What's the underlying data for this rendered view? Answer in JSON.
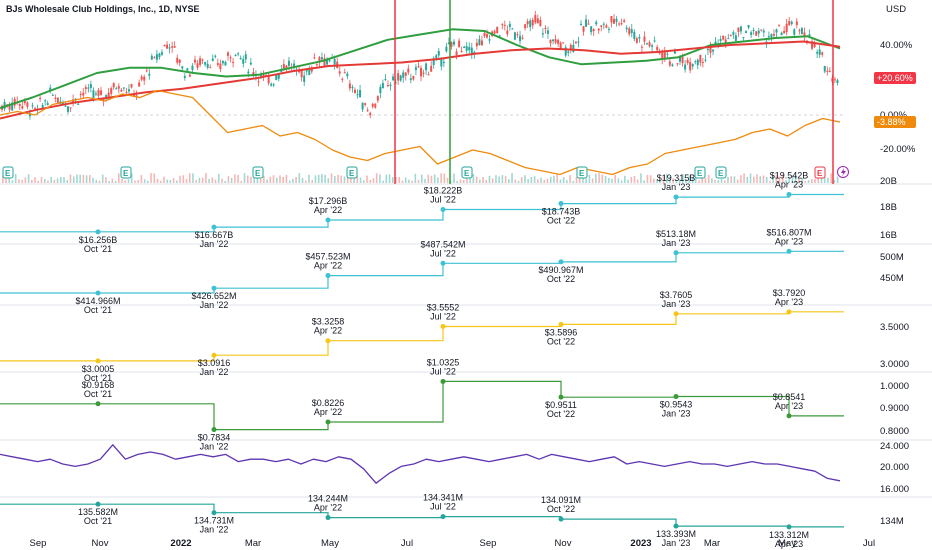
{
  "chart_title": "BJs Wholesale Club Holdings, Inc., 1D, NYSE",
  "currency": "USD",
  "colors": {
    "ma_fast": "#2e9e3e",
    "ma_slow": "#e53935",
    "comparison": "#ef8a0c",
    "up_candle": "#26a69a",
    "down_candle": "#ef5350",
    "revenue": "#3ec1d3",
    "gross_profit": "#3ec1d3",
    "eps": "#f5c518",
    "dividend_line": "#3b9b3b",
    "ratio": "#5e35b1",
    "shares": "#26a69a"
  },
  "chart_data": [
    {
      "type": "line",
      "panel": "price",
      "x_ticks": [
        "Sep",
        "Nov",
        "2022",
        "Mar",
        "May",
        "Jul",
        "Sep",
        "Nov",
        "2023",
        "Mar",
        "May",
        "Jul"
      ],
      "y_ticks": [
        "40.00%",
        "0.00%",
        "-20.00%"
      ],
      "badges": [
        {
          "text": "+20.60%",
          "color": "#f23645"
        },
        {
          "text": "-3.88%",
          "color": "#ef8a0c"
        }
      ],
      "event_markers": [
        "E",
        "E",
        "E",
        "E",
        "E",
        "E",
        "E",
        "E",
        "E"
      ],
      "series": [
        {
          "role": "price",
          "values": [
            5,
            8,
            2,
            12,
            6,
            14,
            10,
            18,
            12,
            30,
            42,
            24,
            32,
            28,
            36,
            26,
            18,
            30,
            22,
            34,
            28,
            16,
            2,
            18,
            22,
            24,
            30,
            40,
            36,
            44,
            50,
            46,
            54,
            42,
            38,
            52,
            50,
            56,
            44,
            40,
            32,
            30,
            34,
            42,
            46,
            48,
            44,
            50,
            48,
            32,
            20
          ]
        },
        {
          "role": "ma_fast",
          "values": [
            4,
            10,
            17,
            24,
            27,
            27,
            24,
            22,
            23,
            27,
            31,
            37,
            43,
            46,
            49,
            48,
            40,
            33,
            29,
            30,
            31,
            33,
            40,
            42,
            44,
            45,
            38
          ]
        },
        {
          "role": "ma_slow",
          "values": [
            -2,
            3,
            7,
            10,
            13,
            15,
            18,
            21,
            25,
            28,
            29,
            30,
            32,
            35,
            37,
            38,
            37,
            35,
            36,
            38,
            40,
            41,
            42,
            39
          ]
        },
        {
          "role": "comparison",
          "values": [
            0,
            2,
            0,
            6,
            8,
            10,
            8,
            12,
            10,
            14,
            12,
            10,
            0,
            -10,
            -8,
            -6,
            -12,
            -10,
            -14,
            -20,
            -24,
            -26,
            -22,
            -20,
            -18,
            -28,
            -24,
            -20,
            -22,
            -26,
            -30,
            -32,
            -34,
            -30,
            -32,
            -34,
            -30,
            -28,
            -22,
            -20,
            -18,
            -16,
            -14,
            -10,
            -8,
            -12,
            -6,
            -2,
            -4
          ]
        }
      ]
    },
    {
      "type": "line",
      "panel": "revenue",
      "x": [
        "Oct '21",
        "Jan '22",
        "Apr '22",
        "Jul '22",
        "Oct '22",
        "Jan '23",
        "Apr '23"
      ],
      "y_ticks": [
        "20B",
        "18B",
        "16B"
      ],
      "values": [
        16.256,
        16.667,
        17.296,
        18.222,
        18.743,
        19.315,
        19.542
      ],
      "labels": [
        "$16.256B",
        "$16.667B",
        "$17.296B",
        "$18.222B",
        "$18.743B",
        "$19.315B",
        "$19.542B"
      ],
      "ylim": [
        15.8,
        20.2
      ]
    },
    {
      "type": "line",
      "panel": "gross_profit",
      "x": [
        "Oct '21",
        "Jan '22",
        "Apr '22",
        "Jul '22",
        "Oct '22",
        "Jan '23",
        "Apr '23"
      ],
      "y_ticks": [
        "500M",
        "450M"
      ],
      "values": [
        414.966,
        426.652,
        457.523,
        487.542,
        490.967,
        513.18,
        516.807
      ],
      "labels": [
        "$414.966M",
        "$426.652M",
        "$457.523M",
        "$487.542M",
        "$490.967M",
        "$513.18M",
        "$516.807M"
      ],
      "ylim": [
        410,
        520
      ]
    },
    {
      "type": "line",
      "panel": "eps",
      "x": [
        "Oct '21",
        "Jan '22",
        "Apr '22",
        "Jul '22",
        "Oct '22",
        "Jan '23",
        "Apr '23"
      ],
      "y_ticks": [
        "3.5000",
        "3.0000"
      ],
      "values": [
        3.0005,
        3.0916,
        3.3258,
        3.5552,
        3.5896,
        3.7605,
        3.792
      ],
      "labels": [
        "$3.0005",
        "$3.0916",
        "$3.3258",
        "$3.5552",
        "$3.5896",
        "$3.7605",
        "$3.7920"
      ],
      "ylim": [
        2.95,
        3.87
      ]
    },
    {
      "type": "line",
      "panel": "ratio",
      "x": [
        "Oct '21",
        "Jan '22",
        "Apr '22",
        "Jul '22",
        "Oct '22",
        "Jan '23",
        "Apr '23"
      ],
      "y_ticks": [
        "1.0000",
        "0.9000",
        "0.8000"
      ],
      "values": [
        0.9168,
        0.7834,
        0.8226,
        1.0325,
        0.9511,
        0.9543,
        0.8541
      ],
      "labels": [
        "$0.9168",
        "$0.7834",
        "$0.8226",
        "$1.0325",
        "$0.9511",
        "$0.9543",
        "$0.8541"
      ],
      "ylim": [
        0.75,
        1.04
      ]
    },
    {
      "type": "line",
      "panel": "valuation",
      "y_ticks": [
        "24.000",
        "20.000",
        "16.000"
      ],
      "values": [
        22,
        21.5,
        21,
        20.5,
        21,
        20,
        19.5,
        20,
        21,
        24,
        21,
        22,
        22.5,
        22,
        21,
        21.5,
        22,
        21.5,
        22,
        20.5,
        21,
        21,
        20.5,
        21,
        20,
        21,
        20.5,
        21.5,
        21,
        19,
        16,
        18,
        19.5,
        20,
        21,
        20.5,
        21,
        21.5,
        21,
        20.5,
        21,
        21.5,
        22,
        21,
        22,
        21.5,
        21,
        20.5,
        21,
        21.5,
        20,
        20.5,
        20,
        19.5,
        20,
        20.5,
        20,
        20,
        19.5,
        20,
        20.5,
        20,
        20,
        19.5,
        19,
        18.5,
        17,
        16.5
      ],
      "ylim": [
        15,
        25
      ]
    },
    {
      "type": "line",
      "panel": "shares",
      "x": [
        "Oct '21",
        "Jan '22",
        "Apr '22",
        "Jul '22",
        "Oct '22",
        "Jan '23",
        "Apr '23"
      ],
      "y_ticks": [
        "134M"
      ],
      "values": [
        135.582,
        134.731,
        134.244,
        134.341,
        134.091,
        133.393,
        133.312
      ],
      "labels": [
        "135.582M",
        "134.731M",
        "134.244M",
        "134.341M",
        "134.091M",
        "133.393M",
        "133.312M"
      ],
      "ylim": [
        133.0,
        136.2
      ]
    }
  ]
}
